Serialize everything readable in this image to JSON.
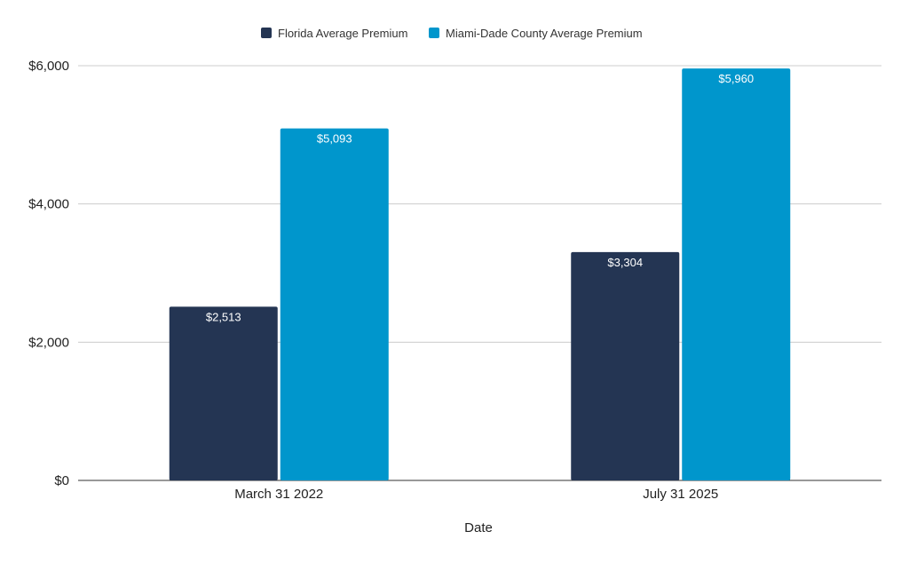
{
  "chart_data": {
    "type": "bar",
    "title": "",
    "xlabel": "Date",
    "ylabel": "",
    "categories": [
      "March 31 2022",
      "July 31 2025"
    ],
    "series": [
      {
        "name": "Florida Average Premium",
        "color": "#243553",
        "values": [
          2513,
          3304
        ],
        "labels": [
          "$2,513",
          "$3,304"
        ]
      },
      {
        "name": "Miami-Dade County Average Premium",
        "color": "#0096cc",
        "values": [
          5093,
          5960
        ],
        "labels": [
          "$5,093",
          "$5,960"
        ]
      }
    ],
    "ylim": [
      0,
      6000
    ],
    "yticks": [
      0,
      2000,
      4000,
      6000
    ],
    "ytick_labels": [
      "$0",
      "$2,000",
      "$4,000",
      "$6,000"
    ],
    "grid": true,
    "legend_position": "top-center"
  }
}
